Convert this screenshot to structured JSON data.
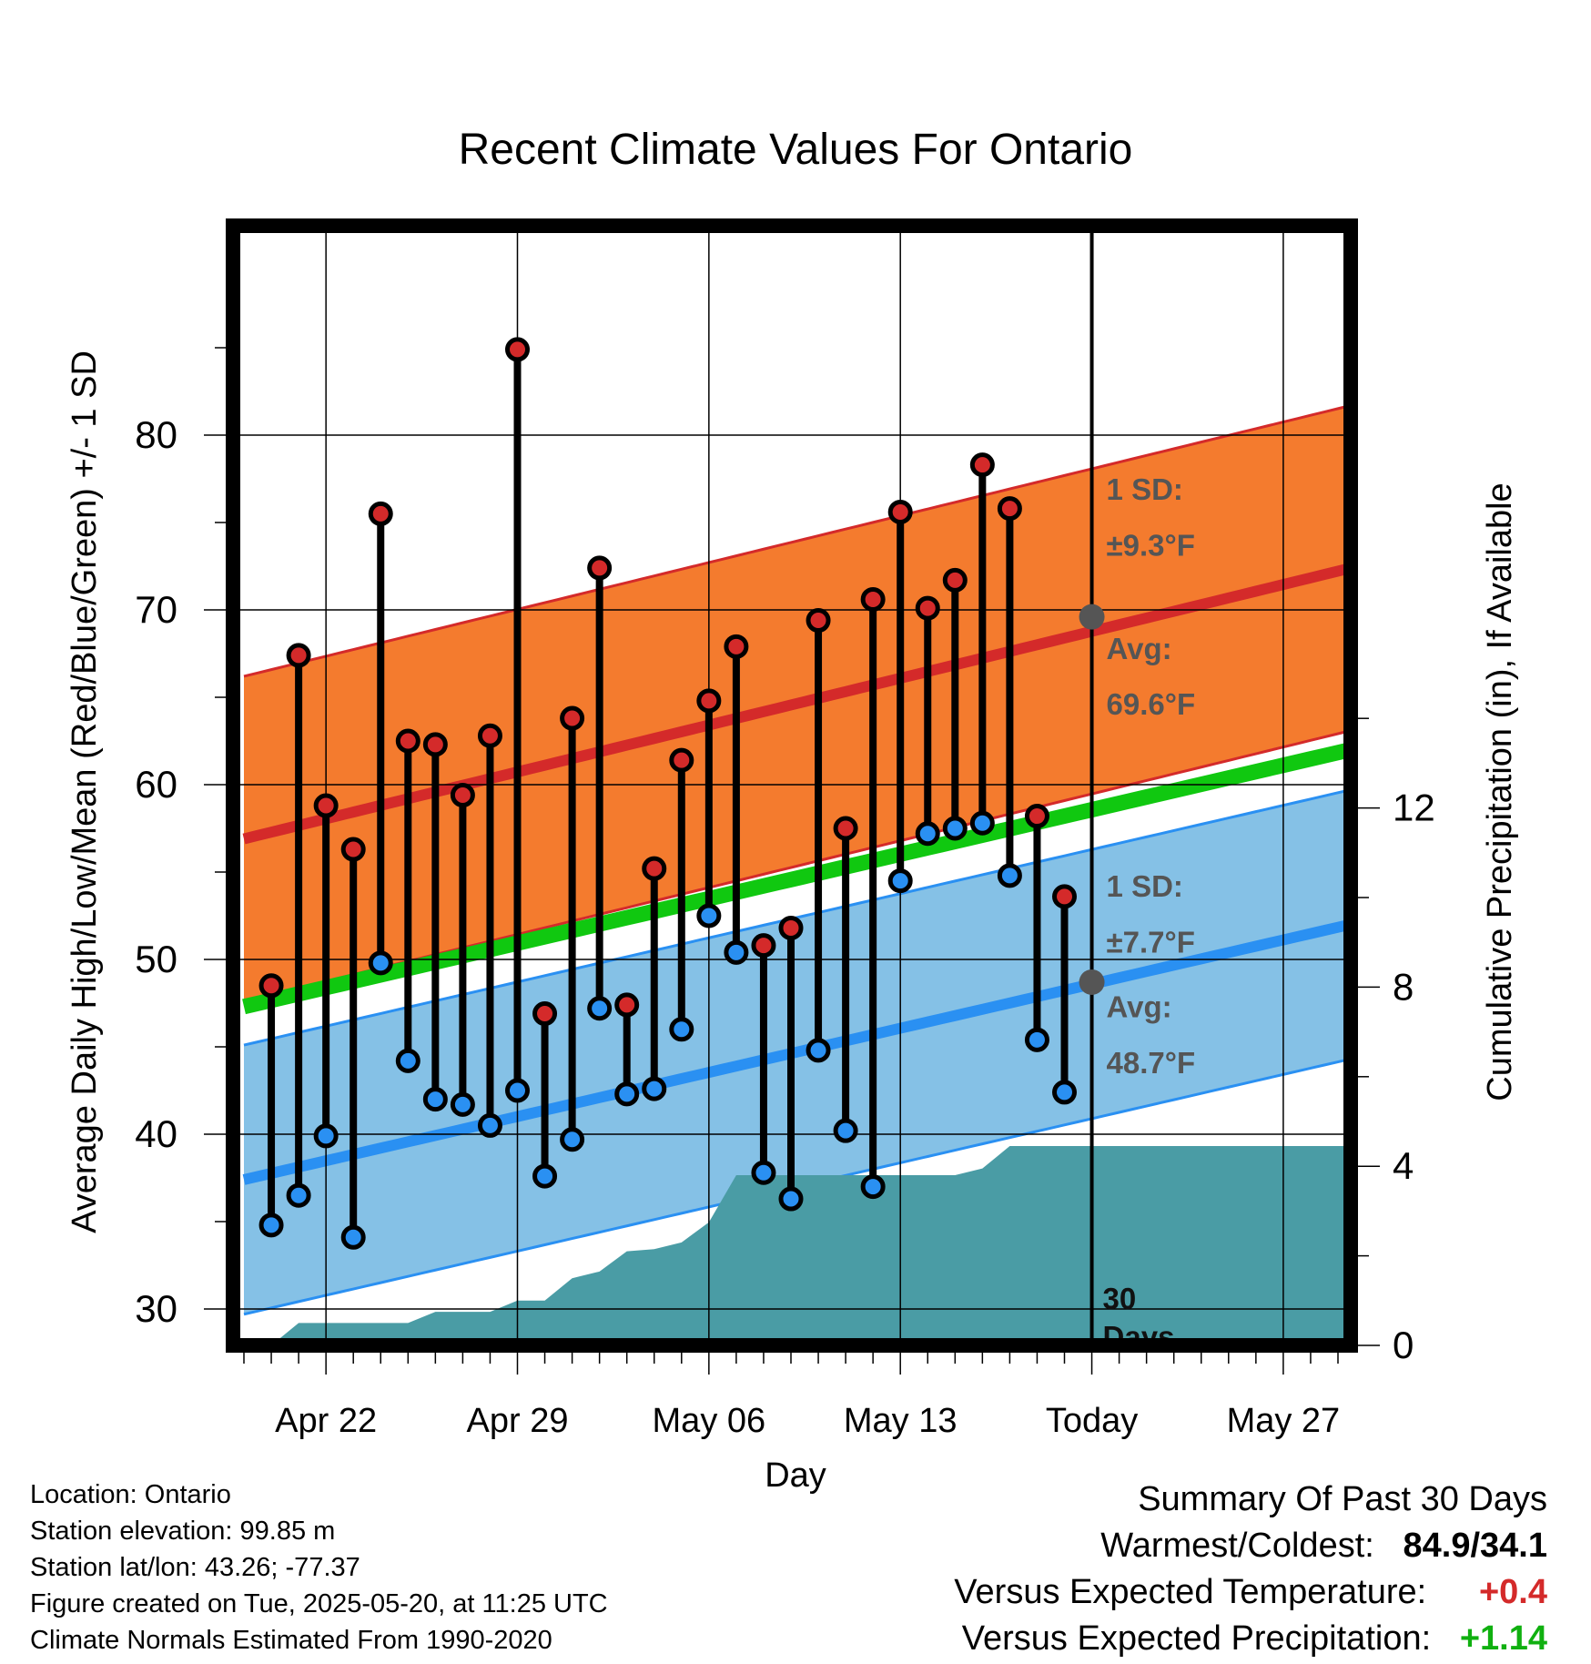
{
  "chart_data": {
    "type": "line",
    "title": "Recent Climate Values For Ontario",
    "xlabel": "Day",
    "ylabel_left": "Average Daily High/Low/Mean (Red/Blue/Green) +/- 1 SD",
    "ylabel_right": "Cumulative Precipitation (in), If Available",
    "y_ticks_left": [
      30,
      40,
      50,
      60,
      70,
      80
    ],
    "y_ticks_right": [
      0,
      4,
      8,
      12
    ],
    "x_tick_labels": [
      "Apr 22",
      "Apr 29",
      "May 06",
      "May 13",
      "Today",
      "May 27"
    ],
    "today_label": "Today",
    "days_label": [
      "30",
      "Days"
    ],
    "normals": {
      "high_avg_start": 56.9,
      "high_avg_end": 72.6,
      "high_sd": 9.3,
      "low_avg_start": 37.4,
      "low_avg_end": 52.2,
      "low_sd": 7.7,
      "mean_start": 47.3,
      "mean_end": 62.2
    },
    "annotations": {
      "high_sd_label": "1 SD:",
      "high_sd_value": "±9.3°F",
      "high_avg_label": "Avg:",
      "high_avg_value": "69.6°F",
      "low_sd_label": "1 SD:",
      "low_sd_value": "±7.7°F",
      "low_avg_label": "Avg:",
      "low_avg_value": "48.7°F",
      "today_high_avg": 69.6,
      "today_low_avg": 48.7
    },
    "daily": [
      {
        "date": "Apr 20",
        "high": 48.5,
        "low": 34.8
      },
      {
        "date": "Apr 21",
        "high": 67.4,
        "low": 36.5
      },
      {
        "date": "Apr 22",
        "high": 58.8,
        "low": 39.9
      },
      {
        "date": "Apr 23",
        "high": 56.3,
        "low": 34.1
      },
      {
        "date": "Apr 24",
        "high": 75.5,
        "low": 49.8
      },
      {
        "date": "Apr 25",
        "high": 62.5,
        "low": 44.2
      },
      {
        "date": "Apr 26",
        "high": 62.3,
        "low": 42.0
      },
      {
        "date": "Apr 27",
        "high": 59.4,
        "low": 41.7
      },
      {
        "date": "Apr 28",
        "high": 62.8,
        "low": 40.5
      },
      {
        "date": "Apr 29",
        "high": 84.9,
        "low": 42.5
      },
      {
        "date": "Apr 30",
        "high": 46.9,
        "low": 37.6
      },
      {
        "date": "May 01",
        "high": 63.8,
        "low": 39.7
      },
      {
        "date": "May 02",
        "high": 72.4,
        "low": 47.2
      },
      {
        "date": "May 03",
        "high": 47.4,
        "low": 42.3
      },
      {
        "date": "May 04",
        "high": 55.2,
        "low": 42.6
      },
      {
        "date": "May 05",
        "high": 61.4,
        "low": 46.0
      },
      {
        "date": "May 06",
        "high": 64.8,
        "low": 52.5
      },
      {
        "date": "May 07",
        "high": 67.9,
        "low": 50.4
      },
      {
        "date": "May 08",
        "high": 50.8,
        "low": 37.8
      },
      {
        "date": "May 09",
        "high": 51.8,
        "low": 36.3
      },
      {
        "date": "May 10",
        "high": 69.4,
        "low": 44.8
      },
      {
        "date": "May 11",
        "high": 57.5,
        "low": 40.2
      },
      {
        "date": "May 12",
        "high": 70.6,
        "low": 37.0
      },
      {
        "date": "May 13",
        "high": 75.6,
        "low": 54.5
      },
      {
        "date": "May 14",
        "high": 70.1,
        "low": 57.2
      },
      {
        "date": "May 15",
        "high": 71.7,
        "low": 57.5
      },
      {
        "date": "May 16",
        "high": 78.3,
        "low": 57.8
      },
      {
        "date": "May 17",
        "high": 75.8,
        "low": 54.8
      },
      {
        "date": "May 18",
        "high": 58.2,
        "low": 45.4
      },
      {
        "date": "May 19",
        "high": 53.6,
        "low": 42.4
      }
    ],
    "precipitation": [
      {
        "date": "Apr 19",
        "value": 0.0
      },
      {
        "date": "Apr 20",
        "value": 0.0
      },
      {
        "date": "Apr 21",
        "value": 0.5
      },
      {
        "date": "Apr 22",
        "value": 0.5
      },
      {
        "date": "Apr 23",
        "value": 0.5
      },
      {
        "date": "Apr 24",
        "value": 0.5
      },
      {
        "date": "Apr 25",
        "value": 0.5
      },
      {
        "date": "Apr 26",
        "value": 0.75
      },
      {
        "date": "Apr 27",
        "value": 0.75
      },
      {
        "date": "Apr 28",
        "value": 0.75
      },
      {
        "date": "Apr 29",
        "value": 1.0
      },
      {
        "date": "Apr 30",
        "value": 1.0
      },
      {
        "date": "May 01",
        "value": 1.5
      },
      {
        "date": "May 02",
        "value": 1.65
      },
      {
        "date": "May 03",
        "value": 2.1
      },
      {
        "date": "May 04",
        "value": 2.15
      },
      {
        "date": "May 05",
        "value": 2.3
      },
      {
        "date": "May 06",
        "value": 2.75
      },
      {
        "date": "May 07",
        "value": 3.8
      },
      {
        "date": "May 08",
        "value": 3.8
      },
      {
        "date": "May 09",
        "value": 3.8
      },
      {
        "date": "May 10",
        "value": 3.8
      },
      {
        "date": "May 11",
        "value": 3.8
      },
      {
        "date": "May 12",
        "value": 3.8
      },
      {
        "date": "May 13",
        "value": 3.8
      },
      {
        "date": "May 14",
        "value": 3.8
      },
      {
        "date": "May 15",
        "value": 3.8
      },
      {
        "date": "May 16",
        "value": 3.95
      },
      {
        "date": "May 17",
        "value": 4.45
      },
      {
        "date": "May 18",
        "value": 4.45
      },
      {
        "date": "May 19",
        "value": 4.45
      },
      {
        "date": "May 20",
        "value": 4.45
      },
      {
        "date": "May 30",
        "value": 4.45
      }
    ],
    "colors": {
      "high_band": "#f47b2e",
      "high_line": "#d42a2a",
      "low_band": "#85c1e6",
      "low_line": "#2a90f2",
      "mean_line": "#10c810",
      "precip": "#4a9ca5",
      "high_dot": "#d42a2a",
      "low_dot": "#2a90f2",
      "annotation": "#555555"
    }
  },
  "info": {
    "location": "Location: Ontario",
    "elevation": "Station elevation: 99.85 m",
    "latlon": "Station lat/lon: 43.26; -77.37",
    "created": "Figure created on Tue, 2025-05-20, at 11:25 UTC",
    "normals": "Climate Normals Estimated From 1990-2020"
  },
  "summary": {
    "title": "Summary Of Past 30 Days",
    "warmest_label": "Warmest/Coldest:",
    "warmest_value": "84.9/34.1",
    "temp_label": "Versus Expected Temperature:",
    "temp_value": "+0.4",
    "temp_color": "#d42a2a",
    "precip_label": "Versus Expected Precipitation:",
    "precip_value": "+1.14",
    "precip_color": "#10b010"
  }
}
